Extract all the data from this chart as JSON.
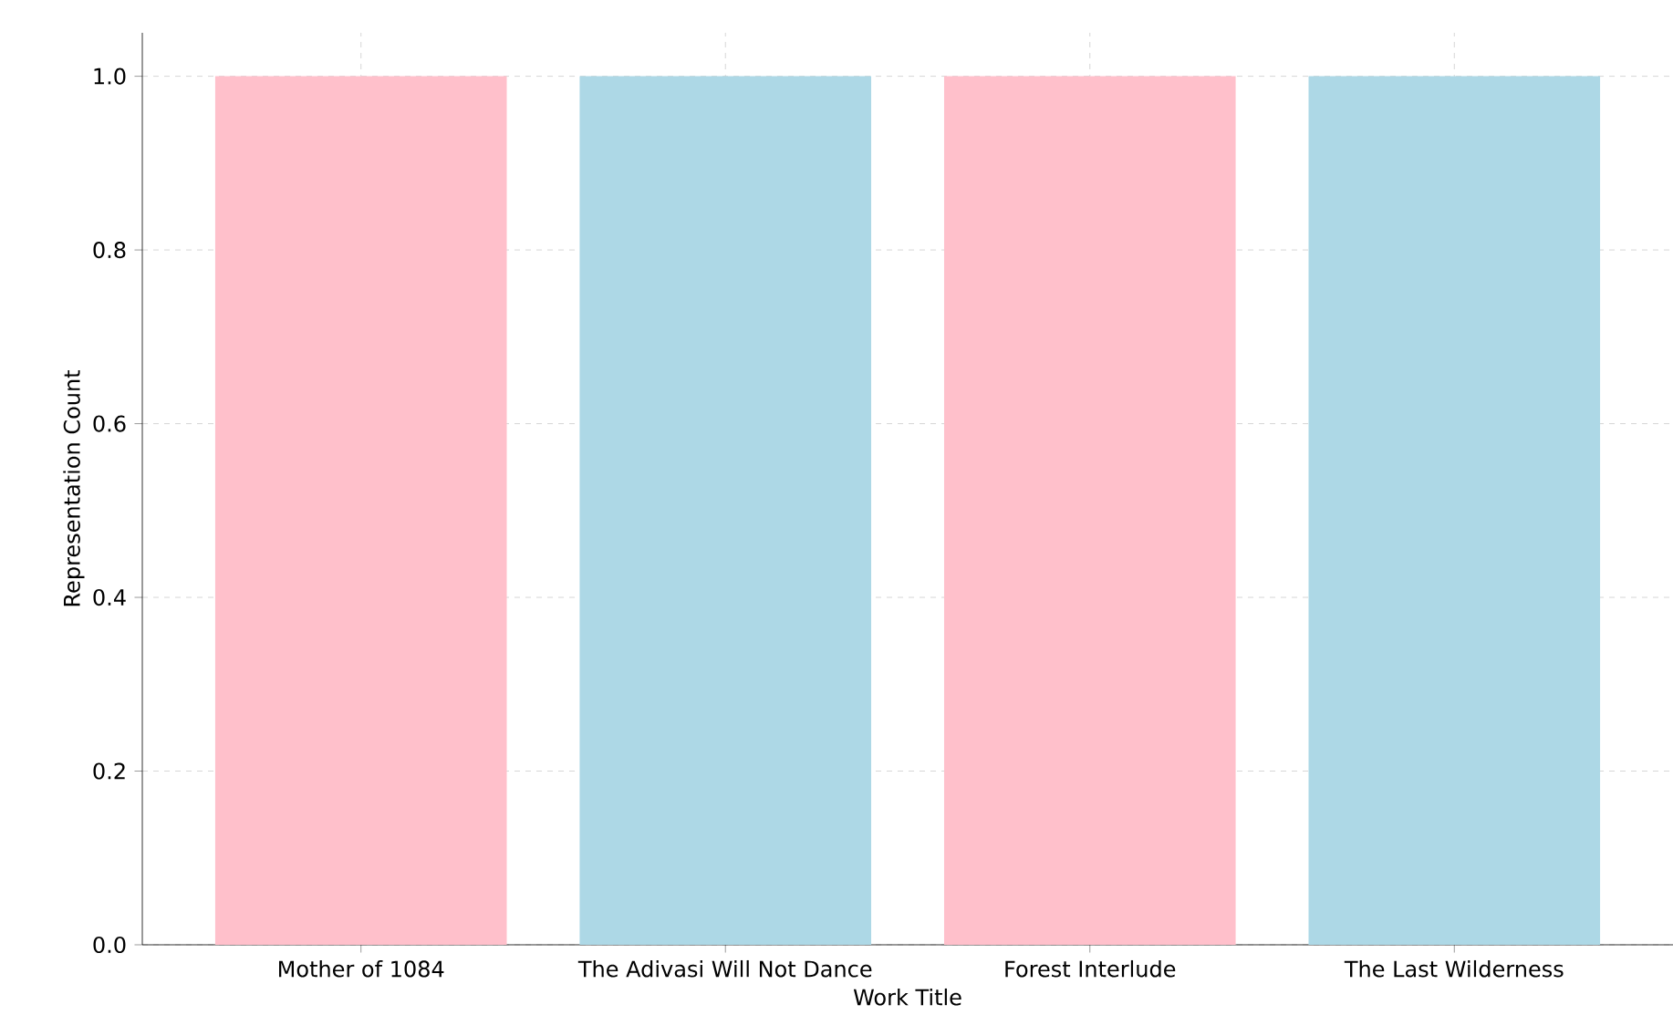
{
  "chart_data": {
    "type": "bar",
    "xlabel": "Work Title",
    "ylabel": "Representation Count",
    "categories": [
      "Mother of 1084",
      "The Adivasi Will Not Dance",
      "Forest Interlude",
      "The Last Wilderness"
    ],
    "values": [
      1.0,
      1.0,
      1.0,
      1.0
    ],
    "colors": [
      "#ffc0cb",
      "#add8e6",
      "#ffc0cb",
      "#add8e6"
    ],
    "ylim": [
      0,
      1.05
    ],
    "yticks": [
      {
        "value": 0,
        "label": "0.0"
      },
      0.2,
      0.4,
      0.6,
      0.8,
      {
        "value": 1,
        "label": "1.0"
      }
    ],
    "grid": true
  }
}
